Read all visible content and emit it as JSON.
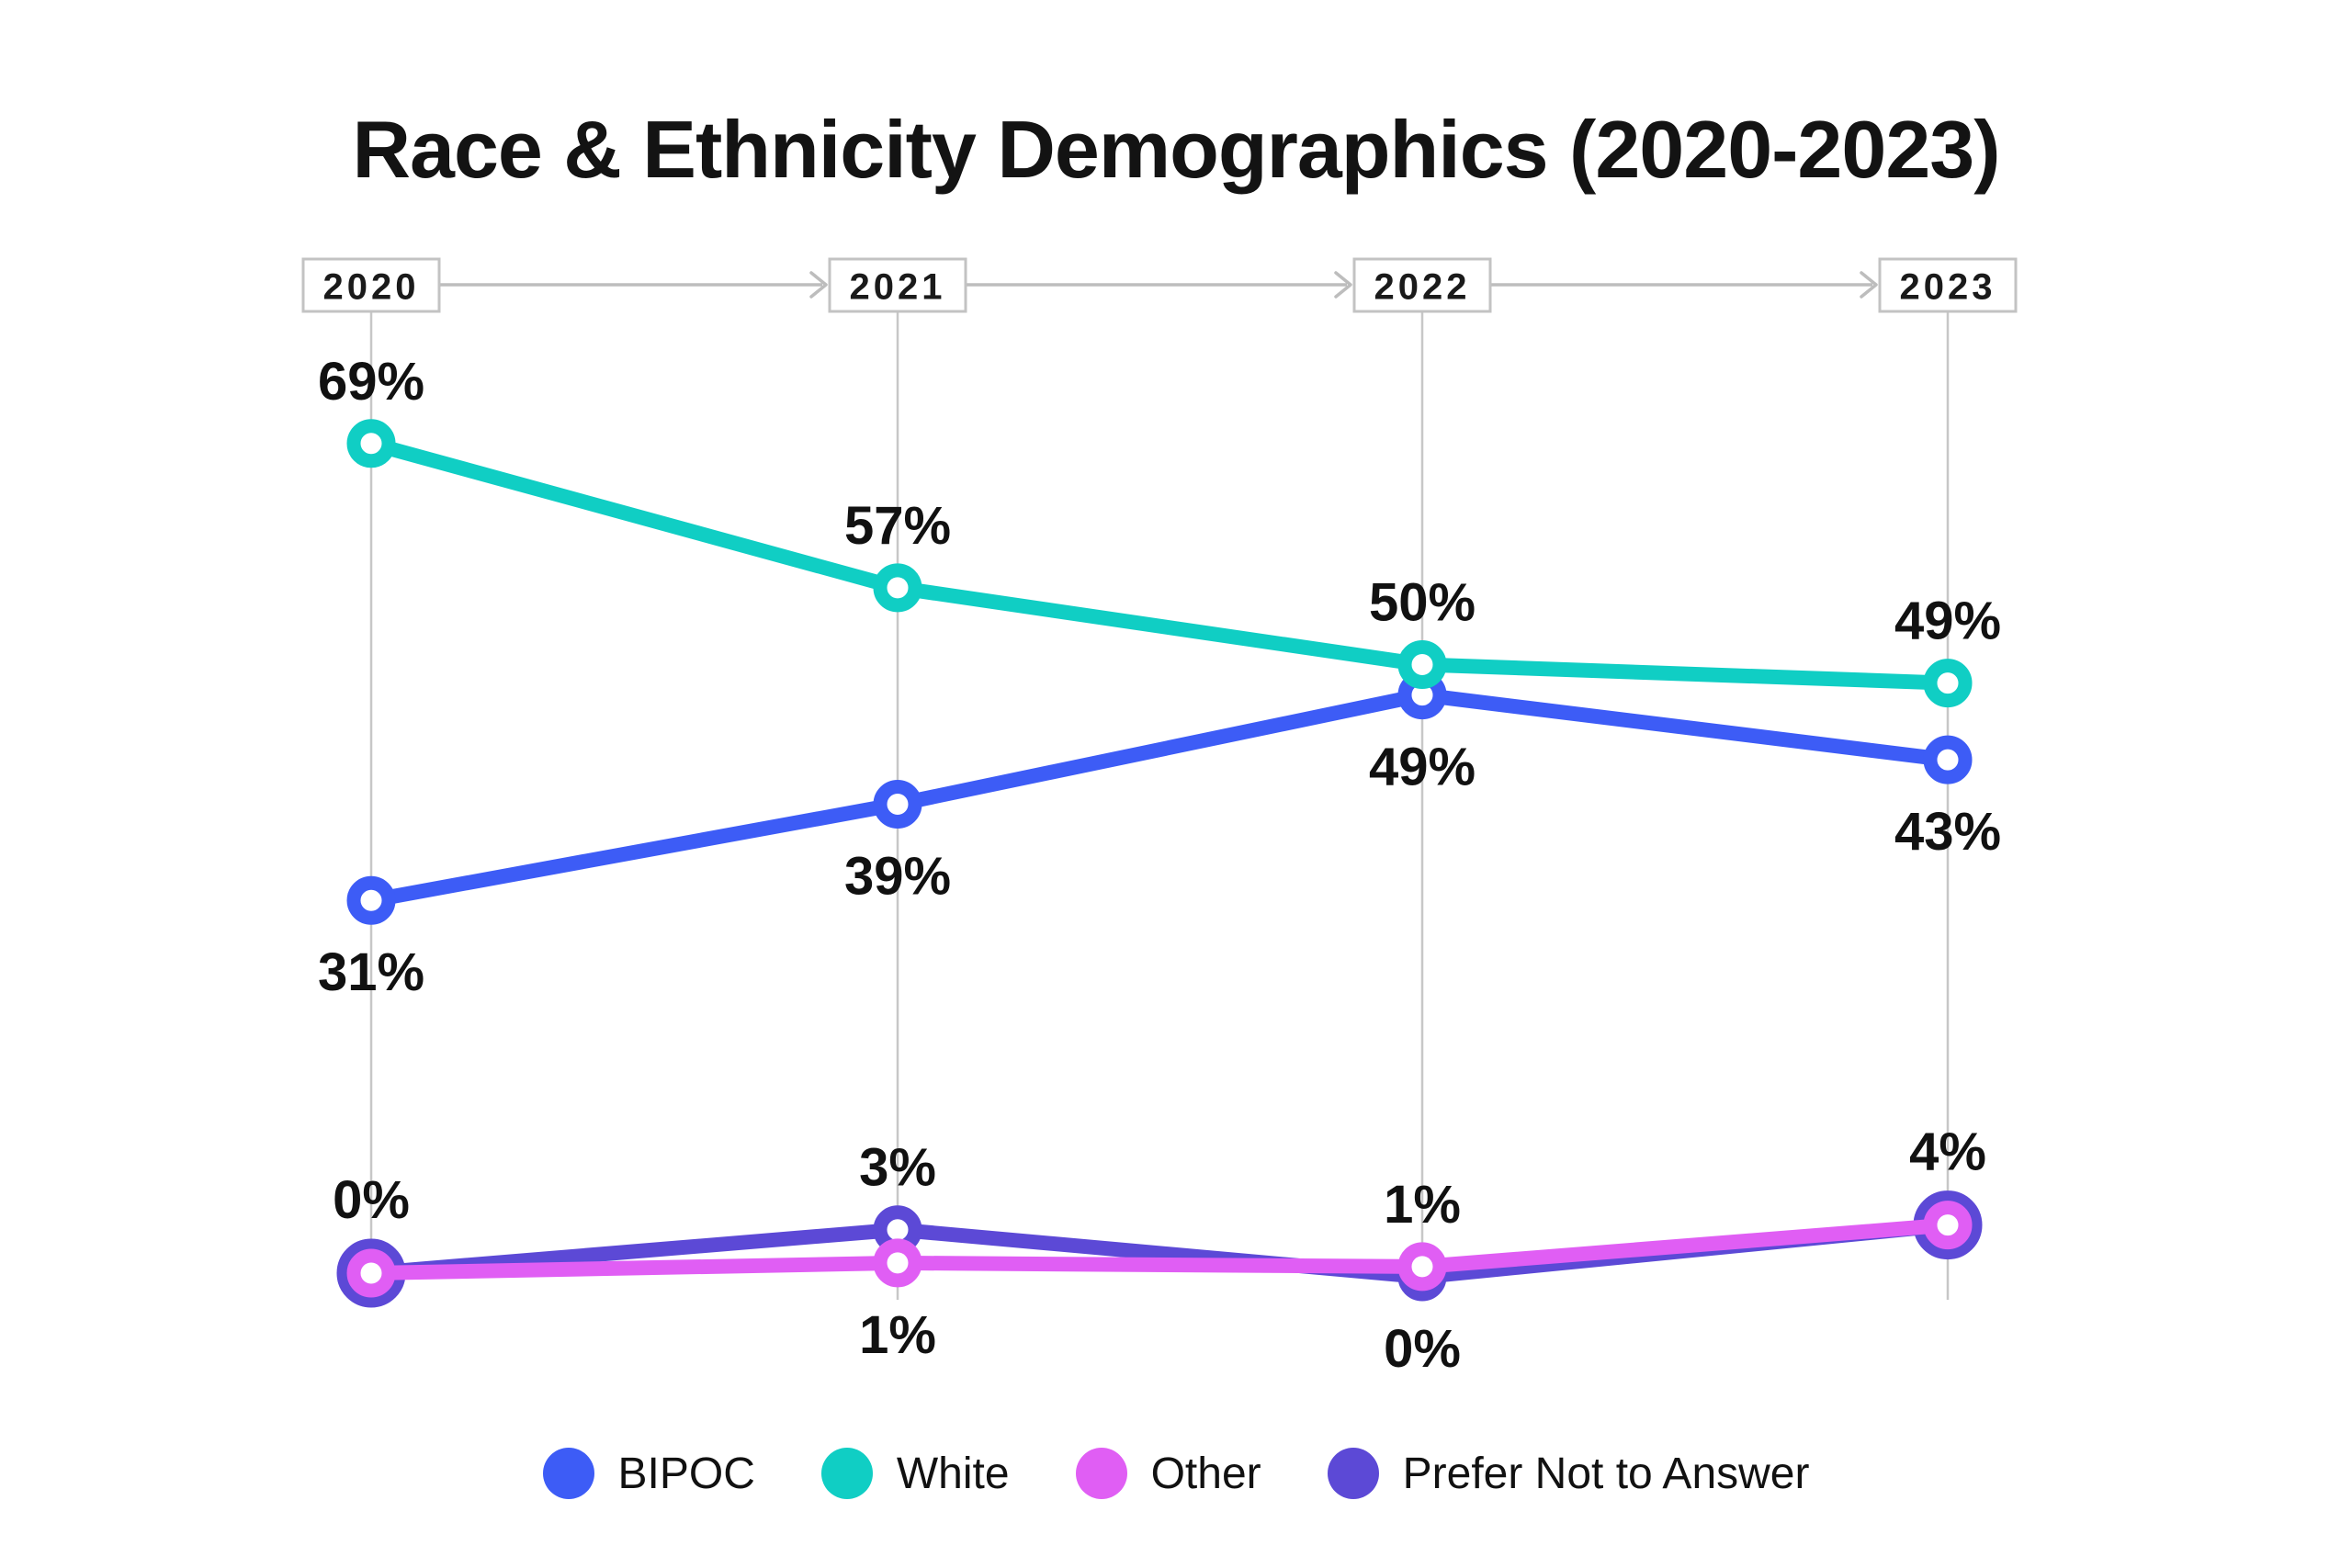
{
  "title": "Race & Ethnicity Demographics (2020-2023)",
  "chart_data": {
    "type": "line",
    "categories": [
      "2020",
      "2021",
      "2022",
      "2023"
    ],
    "series": [
      {
        "name": "BIPOC",
        "color": "#3D5CF6",
        "values": [
          31,
          39,
          49,
          43
        ],
        "label_side": [
          "below",
          "below",
          "below",
          "below"
        ],
        "big_marker_at": []
      },
      {
        "name": "White",
        "color": "#10CEC4",
        "values": [
          69,
          57,
          50,
          49
        ],
        "label_side": [
          "above",
          "above",
          "above",
          "above"
        ],
        "big_marker_at": []
      },
      {
        "name": "Prefer Not to Answer",
        "color": "#5C49D6",
        "values": [
          0,
          3,
          0,
          4
        ],
        "label_side": [
          "above",
          "above",
          "below",
          "above"
        ],
        "big_marker_at": [
          0,
          3
        ]
      },
      {
        "name": "Other",
        "color": "#E05EF4",
        "values": [
          0,
          1,
          1,
          4
        ],
        "label_side": [
          "none",
          "below",
          "above",
          "none"
        ],
        "big_marker_at": []
      }
    ],
    "value_suffix": "%",
    "ylim": [
      0,
      75
    ],
    "grid": "vertical-per-category",
    "legend_position": "bottom",
    "title": "Race & Ethnicity Demographics (2020-2023)"
  },
  "legend": {
    "items": [
      {
        "label": "BIPOC",
        "color": "#3D5CF6"
      },
      {
        "label": "White",
        "color": "#10CEC4"
      },
      {
        "label": "Other",
        "color": "#E05EF4"
      },
      {
        "label": "Prefer Not to Answer",
        "color": "#5C49D6"
      }
    ]
  },
  "colors": {
    "background": "#FFFFFF",
    "text": "#111111",
    "gridline": "#C7C7C7",
    "year_box_border": "#C3C3C3",
    "arrow": "#BDBDBD"
  }
}
